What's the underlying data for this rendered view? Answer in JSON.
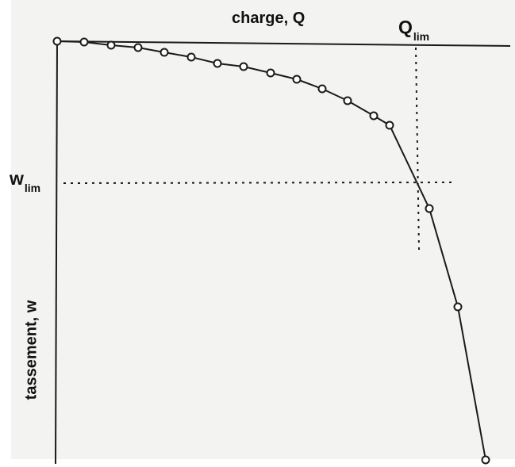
{
  "labels": {
    "x_axis": "charge, Q",
    "y_axis": "tassement, w",
    "q_lim_main": "Q",
    "q_lim_sub": "lim",
    "w_lim_main": "w",
    "w_lim_sub": "lim"
  },
  "colors": {
    "ink": "#1a1a1a",
    "paper": "#f3f3f1"
  }
}
